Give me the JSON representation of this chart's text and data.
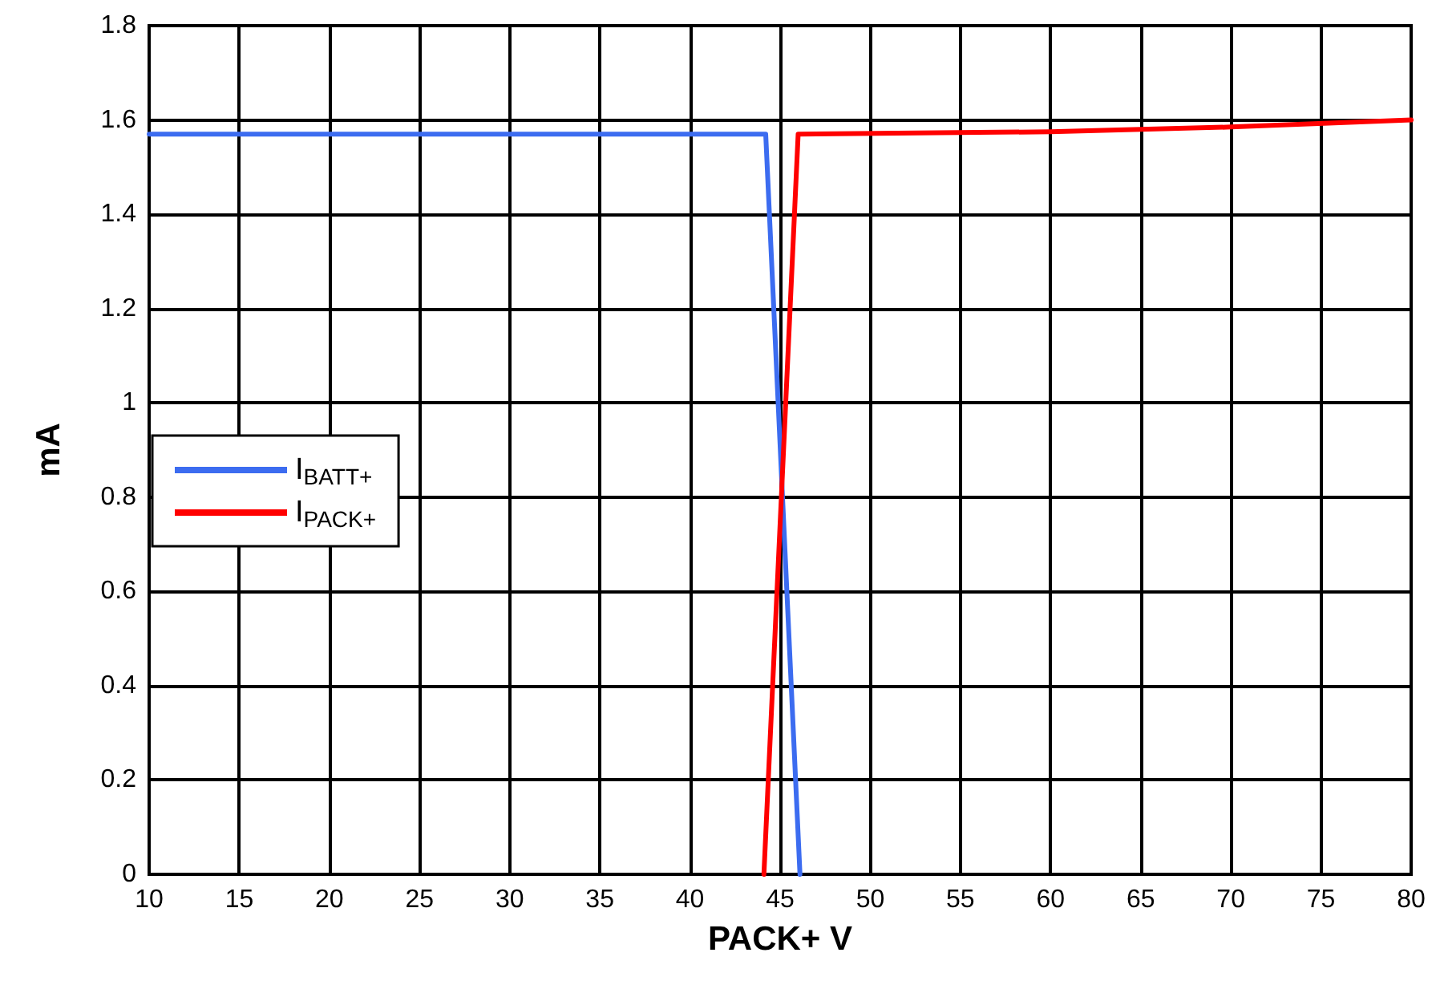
{
  "chart_data": {
    "type": "line",
    "xlabel": "PACK+ V",
    "ylabel": "mA",
    "xlim": [
      10,
      80
    ],
    "xticks": [
      10,
      15,
      20,
      25,
      30,
      35,
      40,
      45,
      50,
      55,
      60,
      65,
      70,
      75,
      80
    ],
    "ylim": [
      0,
      1.8
    ],
    "yticks": [
      0,
      0.2,
      0.4,
      0.6,
      0.8,
      1,
      1.2,
      1.4,
      1.6,
      1.8
    ],
    "grid": true,
    "legend": "left",
    "marker": "none",
    "line_style": "solid",
    "series": [
      {
        "name": "I$_{BATT+}$",
        "color": "#3c6cf0",
        "x": [
          10,
          44.2,
          46.1
        ],
        "values": [
          1.57,
          1.57,
          0
        ]
      },
      {
        "name": "I$_{PACK+}$",
        "color": "#ff0000",
        "x": [
          44.1,
          46,
          60,
          70,
          80
        ],
        "values": [
          0,
          1.57,
          1.575,
          1.585,
          1.6
        ]
      }
    ]
  }
}
